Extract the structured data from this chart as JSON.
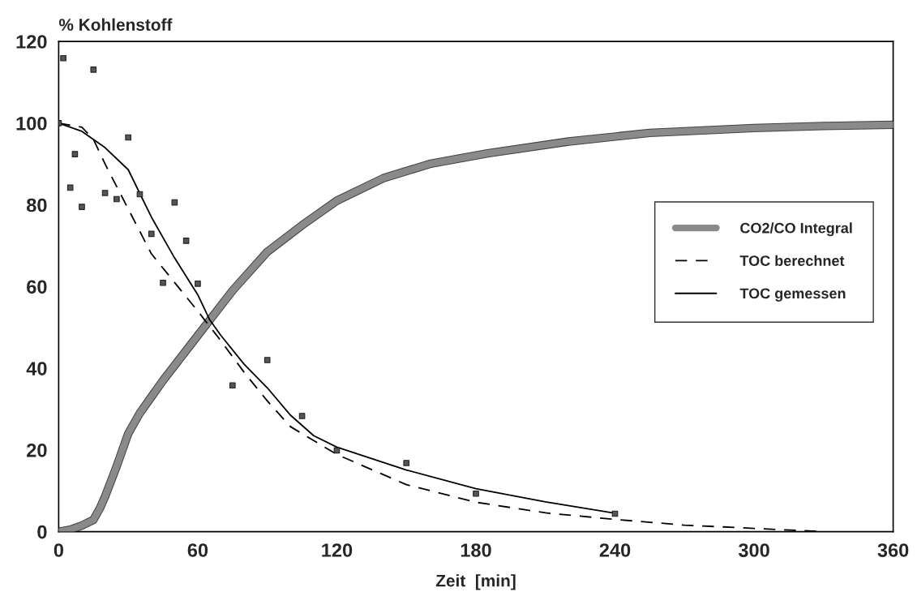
{
  "chart_data": {
    "type": "line",
    "ylabel": "% Kohlenstoff",
    "xlabel": "Zeit  [min]",
    "xlim": [
      0,
      360
    ],
    "xticks": [
      0,
      60,
      120,
      180,
      240,
      300,
      360
    ],
    "ylim": [
      0,
      120
    ],
    "yticks": [
      0,
      20,
      40,
      60,
      80,
      100,
      120
    ],
    "grid": false,
    "legend": "right",
    "series": [
      {
        "name": "CO2/CO Integral",
        "color": "#8a8a8a",
        "line_style": "solid",
        "marker": "none",
        "x": [
          0,
          5,
          10,
          15,
          18,
          20,
          25,
          30,
          35,
          40,
          45,
          60,
          75,
          90,
          105,
          120,
          140,
          160,
          185,
          220,
          255,
          300,
          330,
          360
        ],
        "values": [
          0,
          0.5,
          1.5,
          2.9,
          6,
          8.6,
          16,
          24,
          29,
          33,
          37,
          48,
          59,
          68.5,
          75,
          81,
          86.5,
          90,
          92.6,
          95.5,
          97.6,
          98.8,
          99.3,
          99.6
        ]
      },
      {
        "name": "TOC berechnet",
        "color": "#000000",
        "line_style": "dashed",
        "marker": "none",
        "x": [
          0,
          10,
          15,
          20,
          30,
          40,
          50,
          60,
          70,
          80,
          90,
          100,
          120,
          150,
          180,
          210,
          240,
          270,
          300,
          330
        ],
        "values": [
          100,
          99,
          96,
          90,
          79,
          68,
          61,
          54,
          46.7,
          39,
          32,
          25.7,
          18.9,
          11.5,
          7.2,
          4.6,
          3,
          1.6,
          0.8,
          0
        ]
      },
      {
        "name": "TOC gemessen",
        "color": "#000000",
        "line_style": "solid",
        "marker": "none",
        "x": [
          0,
          10,
          20,
          30,
          40,
          50,
          60,
          65,
          70,
          80,
          90,
          100,
          110,
          120,
          150,
          180,
          210,
          240
        ],
        "values": [
          100,
          98,
          94,
          88.6,
          77,
          67,
          58,
          52,
          48,
          41,
          35.2,
          28.5,
          23.5,
          20.7,
          15.1,
          10.5,
          7.3,
          4.5
        ]
      },
      {
        "type": "scatter",
        "color": "#555555",
        "marker": "square",
        "x": [
          0,
          2,
          5,
          7,
          10,
          15,
          20,
          25,
          30,
          35,
          40,
          45,
          50,
          55,
          60,
          75,
          90,
          105,
          120,
          150,
          180,
          240
        ],
        "values": [
          100,
          115.9,
          84.2,
          92.4,
          79.5,
          113.1,
          82.9,
          81.4,
          96.5,
          82.6,
          72.9,
          60.9,
          80.6,
          71.2,
          60.7,
          35.8,
          42,
          28.3,
          19.9,
          16.8,
          9.3,
          4.4
        ]
      }
    ]
  }
}
